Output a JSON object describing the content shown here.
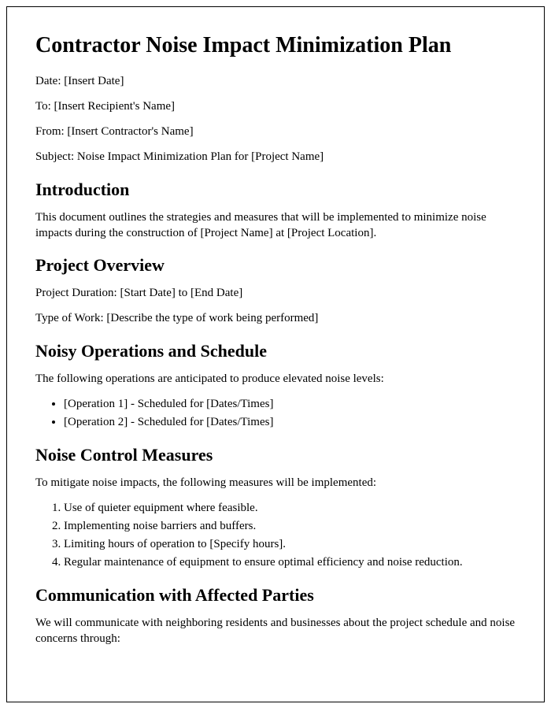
{
  "title": "Contractor Noise Impact Minimization Plan",
  "meta": {
    "date": "Date: [Insert Date]",
    "to": "To: [Insert Recipient's Name]",
    "from": "From: [Insert Contractor's Name]",
    "subject": "Subject: Noise Impact Minimization Plan for [Project Name]"
  },
  "sections": {
    "intro": {
      "heading": "Introduction",
      "body": "This document outlines the strategies and measures that will be implemented to minimize noise impacts during the construction of [Project Name] at [Project Location]."
    },
    "overview": {
      "heading": "Project Overview",
      "duration": "Project Duration: [Start Date] to [End Date]",
      "work_type": "Type of Work: [Describe the type of work being performed]"
    },
    "noisy_ops": {
      "heading": "Noisy Operations and Schedule",
      "intro": "The following operations are anticipated to produce elevated noise levels:",
      "items": [
        "[Operation 1] - Scheduled for [Dates/Times]",
        "[Operation 2] - Scheduled for [Dates/Times]"
      ]
    },
    "control": {
      "heading": "Noise Control Measures",
      "intro": "To mitigate noise impacts, the following measures will be implemented:",
      "items": [
        "Use of quieter equipment where feasible.",
        "Implementing noise barriers and buffers.",
        "Limiting hours of operation to [Specify hours].",
        "Regular maintenance of equipment to ensure optimal efficiency and noise reduction."
      ]
    },
    "communication": {
      "heading": "Communication with Affected Parties",
      "intro": "We will communicate with neighboring residents and businesses about the project schedule and noise concerns through:"
    }
  },
  "style": {
    "font_family": "Times New Roman",
    "h1_fontsize": 28,
    "h2_fontsize": 22,
    "body_fontsize": 15,
    "text_color": "#000000",
    "background_color": "#ffffff",
    "border_color": "#000000"
  }
}
